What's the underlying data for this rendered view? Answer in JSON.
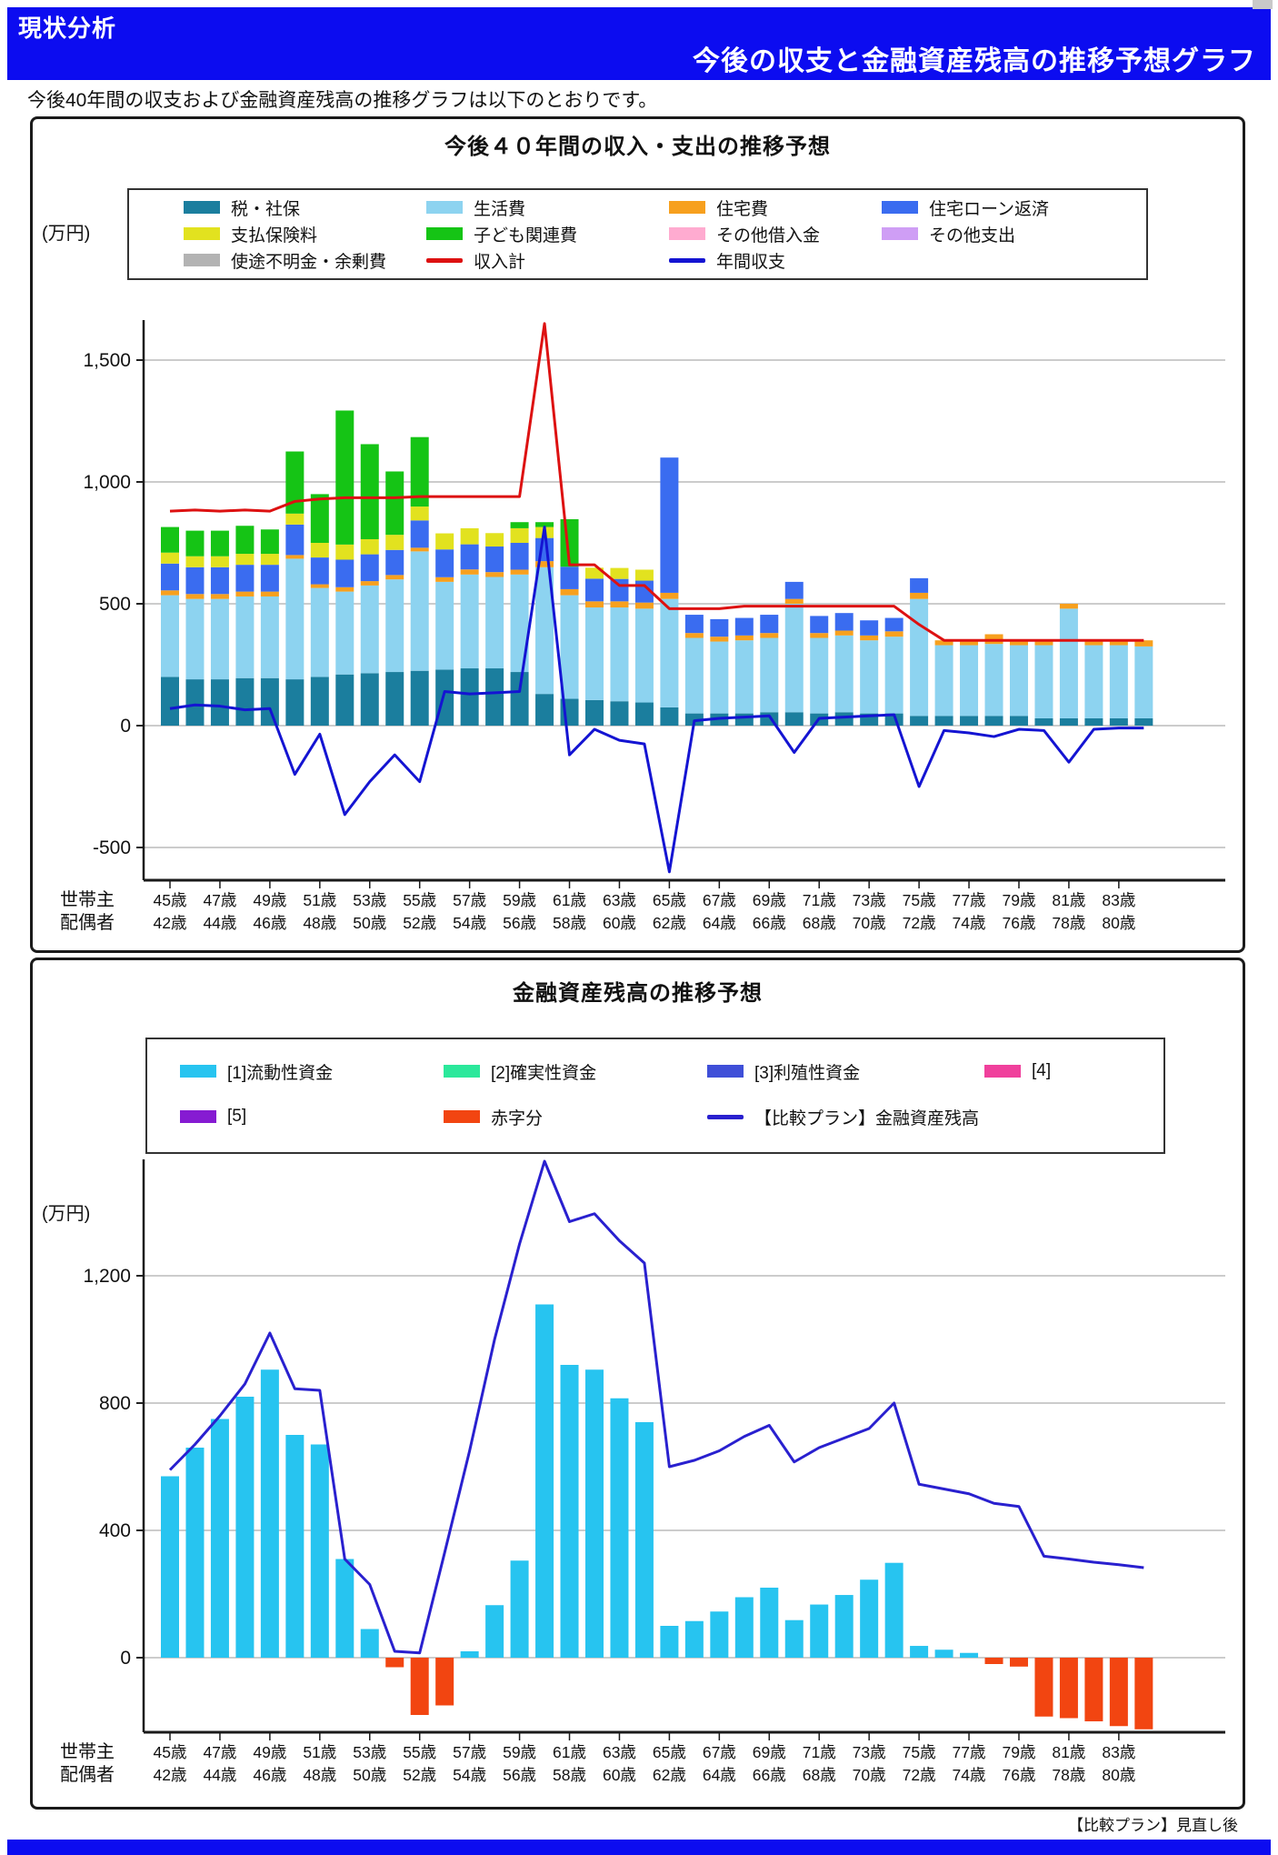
{
  "page": {
    "accent_color": "#0c0cf0",
    "banner": {
      "section_label": "現状分析",
      "title": "今後の収支と金融資産残高の推移予想グラフ"
    },
    "intro_text": "今後40年間の収支および金融資産残高の推移グラフは以下のとおりです。",
    "footer_note": "【比較プラン】見直し後"
  },
  "chart_data": [
    {
      "type": "bar",
      "title": "今後４０年間の収入・支出の推移予想",
      "unit_label": "(万円)",
      "legend_position": "top",
      "grid": true,
      "ylim": [
        -630,
        1700
      ],
      "yticks": [
        -500,
        0,
        500,
        1000,
        1500
      ],
      "years": 40,
      "x_axis": {
        "row1_label": "世帯主",
        "row2_label": "配偶者",
        "row1_ticks": [
          "45歳",
          "47歳",
          "49歳",
          "51歳",
          "53歳",
          "55歳",
          "57歳",
          "59歳",
          "61歳",
          "63歳",
          "65歳",
          "67歳",
          "69歳",
          "71歳",
          "73歳",
          "75歳",
          "77歳",
          "79歳",
          "81歳",
          "83歳"
        ],
        "row2_ticks": [
          "42歳",
          "44歳",
          "46歳",
          "48歳",
          "50歳",
          "52歳",
          "54歳",
          "56歳",
          "58歳",
          "60歳",
          "62歳",
          "64歳",
          "66歳",
          "68歳",
          "70歳",
          "72歳",
          "74歳",
          "76歳",
          "78歳",
          "80歳"
        ]
      },
      "series": [
        {
          "name": "税・社保",
          "color": "#1b7e9e",
          "values": [
            200,
            190,
            190,
            195,
            195,
            190,
            200,
            210,
            215,
            220,
            225,
            230,
            235,
            235,
            220,
            130,
            110,
            105,
            100,
            95,
            75,
            50,
            50,
            50,
            55,
            55,
            50,
            55,
            50,
            50,
            40,
            40,
            40,
            40,
            40,
            30,
            30,
            30,
            30,
            30
          ]
        },
        {
          "name": "生活費",
          "color": "#8dd3f0",
          "values": [
            335,
            330,
            330,
            335,
            335,
            495,
            365,
            340,
            360,
            380,
            490,
            360,
            385,
            375,
            400,
            520,
            425,
            380,
            385,
            385,
            445,
            310,
            295,
            300,
            305,
            445,
            310,
            315,
            300,
            315,
            480,
            290,
            290,
            295,
            290,
            300,
            450,
            300,
            300,
            295
          ]
        },
        {
          "name": "住宅費",
          "color": "#f7a01e",
          "values": [
            20,
            20,
            20,
            20,
            20,
            15,
            15,
            18,
            18,
            18,
            15,
            19,
            21,
            20,
            20,
            25,
            25,
            25,
            25,
            25,
            25,
            20,
            20,
            20,
            20,
            20,
            20,
            20,
            20,
            22,
            25,
            20,
            20,
            40,
            20,
            20,
            20,
            20,
            20,
            25
          ]
        },
        {
          "name": "住宅ローン返済",
          "color": "#3a6cf0",
          "values": [
            110,
            110,
            110,
            110,
            110,
            125,
            110,
            113,
            110,
            103,
            112,
            114,
            103,
            105,
            110,
            95,
            92,
            93,
            92,
            90,
            555,
            75,
            72,
            72,
            75,
            70,
            70,
            72,
            62,
            55,
            60,
            0,
            0,
            0,
            0,
            0,
            0,
            0,
            0,
            0
          ]
        },
        {
          "name": "支払保険料",
          "color": "#e2e21f",
          "values": [
            45,
            45,
            45,
            45,
            45,
            45,
            60,
            62,
            62,
            62,
            57,
            66,
            66,
            55,
            60,
            45,
            0,
            45,
            45,
            45,
            0,
            0,
            0,
            0,
            0,
            0,
            0,
            0,
            0,
            0,
            0,
            0,
            0,
            0,
            0,
            0,
            0,
            0,
            0,
            0
          ]
        },
        {
          "name": "子ども関連費",
          "color": "#15c415",
          "values": [
            105,
            105,
            105,
            115,
            100,
            255,
            200,
            550,
            390,
            260,
            285,
            0,
            0,
            0,
            25,
            20,
            195,
            0,
            0,
            0,
            0,
            0,
            0,
            0,
            0,
            0,
            0,
            0,
            0,
            0,
            0,
            0,
            0,
            0,
            0,
            0,
            0,
            0,
            0,
            0
          ]
        },
        {
          "name": "その他借入金",
          "color": "#ffabd0",
          "values": []
        },
        {
          "name": "その他支出",
          "color": "#cf9ef5",
          "values": []
        },
        {
          "name": "使途不明金・余剰費",
          "color": "#b3b3b3",
          "values": []
        }
      ],
      "lines": [
        {
          "name": "収入計",
          "color": "#dd1111",
          "values": [
            880,
            885,
            880,
            885,
            880,
            920,
            930,
            935,
            935,
            935,
            940,
            940,
            940,
            940,
            940,
            1650,
            660,
            660,
            575,
            575,
            480,
            480,
            480,
            490,
            490,
            490,
            490,
            490,
            490,
            490,
            415,
            350,
            350,
            350,
            350,
            350,
            350,
            350,
            350,
            350
          ]
        },
        {
          "name": "年間収支",
          "color": "#1414d2",
          "values": [
            70,
            85,
            80,
            65,
            70,
            -200,
            -35,
            -365,
            -230,
            -120,
            -230,
            140,
            130,
            135,
            140,
            815,
            -120,
            -15,
            -60,
            -75,
            -600,
            20,
            30,
            35,
            40,
            -110,
            30,
            35,
            40,
            45,
            -250,
            -20,
            -30,
            -45,
            -15,
            -20,
            -150,
            -15,
            -10,
            -10
          ]
        }
      ]
    },
    {
      "type": "bar",
      "title": "金融資産残高の推移予想",
      "unit_label": "(万円)",
      "legend_position": "top",
      "grid": true,
      "ylim": [
        -260,
        1560
      ],
      "yticks": [
        0,
        400,
        800,
        1200
      ],
      "years": 40,
      "x_axis": {
        "row1_label": "世帯主",
        "row2_label": "配偶者",
        "row1_ticks": [
          "45歳",
          "47歳",
          "49歳",
          "51歳",
          "53歳",
          "55歳",
          "57歳",
          "59歳",
          "61歳",
          "63歳",
          "65歳",
          "67歳",
          "69歳",
          "71歳",
          "73歳",
          "75歳",
          "77歳",
          "79歳",
          "81歳",
          "83歳"
        ],
        "row2_ticks": [
          "42歳",
          "44歳",
          "46歳",
          "48歳",
          "50歳",
          "52歳",
          "54歳",
          "56歳",
          "58歳",
          "60歳",
          "62歳",
          "64歳",
          "66歳",
          "68歳",
          "70歳",
          "72歳",
          "74歳",
          "76歳",
          "78歳",
          "80歳"
        ]
      },
      "series": [
        {
          "name": "[1]流動性資金",
          "color": "#27c4f0",
          "values": [
            570,
            660,
            750,
            820,
            905,
            700,
            670,
            310,
            90,
            0,
            0,
            0,
            20,
            165,
            305,
            1110,
            920,
            905,
            815,
            740,
            100,
            115,
            145,
            190,
            220,
            118,
            167,
            197,
            245,
            298,
            37,
            25,
            15,
            0,
            0,
            0,
            0,
            0,
            0,
            0
          ]
        },
        {
          "name": "[2]確実性資金",
          "color": "#2be89b",
          "values": []
        },
        {
          "name": "[3]利殖性資金",
          "color": "#3f4fd8",
          "values": []
        },
        {
          "name": "[4]",
          "color": "#f0409c",
          "values": []
        },
        {
          "name": "[5]",
          "color": "#861bd2",
          "values": []
        },
        {
          "name": "赤字分",
          "color": "#f24511",
          "values": [
            0,
            0,
            0,
            0,
            0,
            0,
            0,
            0,
            0,
            -30,
            -180,
            -150,
            0,
            0,
            0,
            0,
            0,
            0,
            0,
            0,
            0,
            0,
            0,
            0,
            0,
            0,
            0,
            0,
            0,
            0,
            0,
            0,
            0,
            -20,
            -28,
            -185,
            -190,
            -200,
            -215,
            -225
          ]
        }
      ],
      "lines": [
        {
          "name": "【比較プラン】金融資産残高",
          "color": "#2920cf",
          "values": [
            590,
            670,
            760,
            860,
            1020,
            845,
            840,
            310,
            230,
            20,
            15,
            330,
            650,
            1000,
            1300,
            1560,
            1370,
            1395,
            1310,
            1240,
            600,
            620,
            650,
            695,
            730,
            615,
            660,
            690,
            720,
            800,
            545,
            530,
            515,
            485,
            475,
            319,
            310,
            300,
            292,
            283
          ]
        }
      ]
    }
  ]
}
